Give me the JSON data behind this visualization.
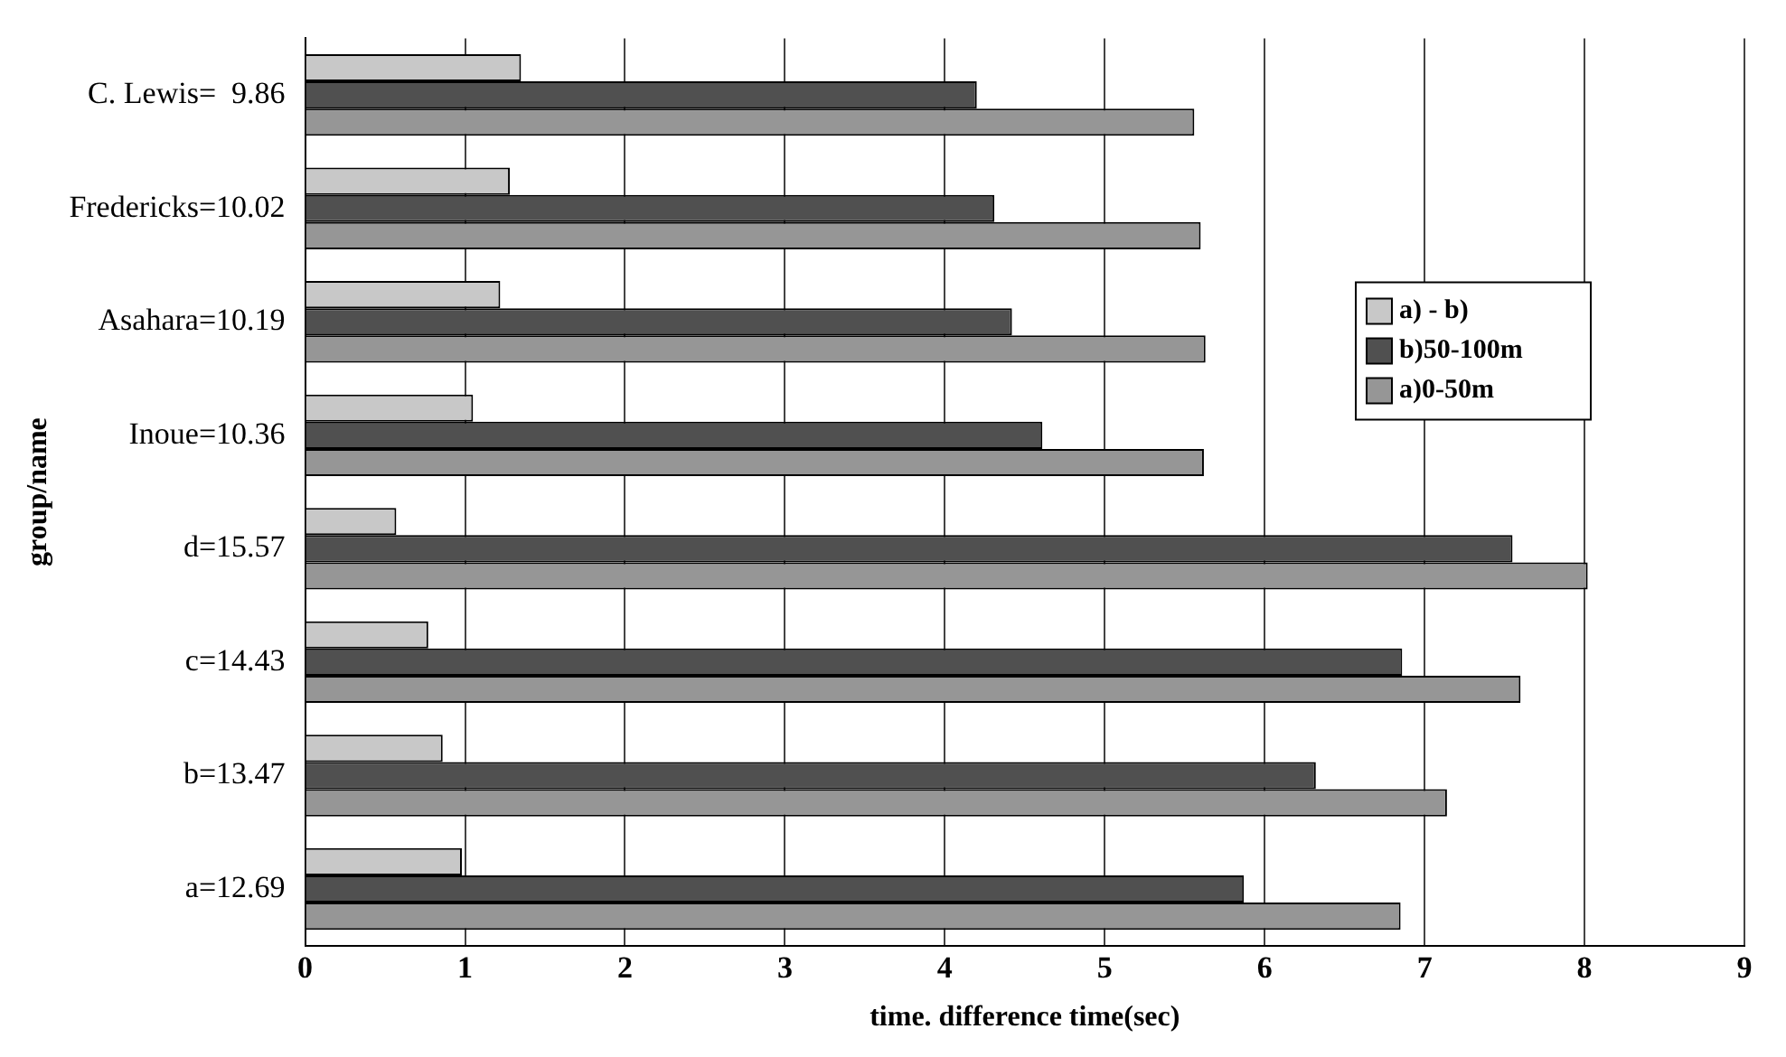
{
  "chart_data": {
    "type": "bar",
    "orientation": "horizontal",
    "xlabel": "time. difference time(sec)",
    "ylabel": "group/name",
    "categories": [
      "C. Lewis=  9.86",
      "Fredericks=10.02",
      "Asahara=10.19",
      "Inoue=10.36",
      "d=15.57",
      "c=14.43",
      "b=13.47",
      "a=12.69"
    ],
    "series": [
      {
        "name": "a) - b)",
        "color": "#c8c8c8",
        "values": [
          1.35,
          1.28,
          1.22,
          1.05,
          0.57,
          0.77,
          0.86,
          0.98
        ]
      },
      {
        "name": "b)50-100m",
        "color": "#505050",
        "values": [
          4.2,
          4.31,
          4.42,
          4.61,
          7.55,
          6.86,
          6.32,
          5.87
        ]
      },
      {
        "name": "a)0-50m",
        "color": "#969696",
        "values": [
          5.56,
          5.6,
          5.63,
          5.62,
          8.02,
          7.6,
          7.14,
          6.85
        ]
      }
    ],
    "xlim": [
      0,
      9
    ],
    "xticks": [
      0,
      1,
      2,
      3,
      4,
      5,
      6,
      7,
      8,
      9
    ],
    "grid": "x",
    "legend": "top right"
  }
}
